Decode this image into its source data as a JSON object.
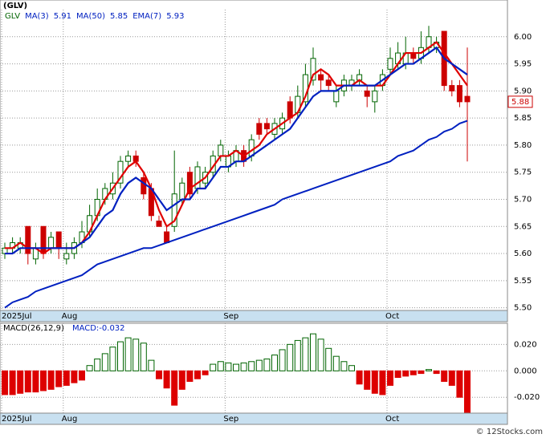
{
  "title": "(GLV)",
  "watermark": "© 12Stocks.com",
  "chart_data": [
    {
      "type": "candlestick",
      "ticker": "GLV",
      "legend": [
        {
          "name": "MA(3)",
          "value": 5.91
        },
        {
          "name": "MA(50)",
          "value": 5.85
        },
        {
          "name": "EMA(7)",
          "value": 5.93
        }
      ],
      "last_price": 5.88,
      "categories": [
        "2025Jul",
        null,
        null,
        null,
        null,
        null,
        null,
        null,
        "Aug",
        null,
        null,
        null,
        null,
        null,
        null,
        null,
        null,
        null,
        null,
        null,
        null,
        null,
        null,
        null,
        null,
        null,
        null,
        null,
        null,
        "Sep",
        null,
        null,
        null,
        null,
        null,
        null,
        null,
        null,
        null,
        null,
        null,
        null,
        null,
        null,
        null,
        null,
        null,
        null,
        null,
        null,
        "Oct",
        null,
        null,
        null,
        null,
        null,
        null,
        null,
        null,
        null,
        null
      ],
      "open": [
        5.6,
        5.61,
        5.61,
        5.65,
        5.59,
        5.65,
        5.61,
        5.64,
        5.59,
        5.6,
        5.62,
        5.64,
        5.67,
        5.7,
        5.71,
        5.73,
        5.77,
        5.78,
        5.74,
        5.72,
        5.66,
        5.64,
        5.65,
        5.7,
        5.75,
        5.72,
        5.73,
        5.75,
        5.78,
        5.76,
        5.77,
        5.79,
        5.78,
        5.84,
        5.84,
        5.82,
        5.83,
        5.88,
        5.86,
        5.88,
        5.92,
        5.93,
        5.92,
        5.88,
        5.9,
        5.91,
        5.92,
        5.9,
        5.88,
        5.91,
        5.94,
        5.95,
        5.95,
        5.97,
        5.96,
        5.98,
        5.98,
        6.01,
        5.91,
        5.91,
        5.89
      ],
      "high": [
        5.62,
        5.63,
        5.63,
        5.65,
        5.62,
        5.65,
        5.64,
        5.64,
        5.62,
        5.63,
        5.66,
        5.69,
        5.72,
        5.73,
        5.75,
        5.78,
        5.79,
        5.79,
        5.75,
        5.73,
        5.67,
        5.65,
        5.79,
        5.74,
        5.76,
        5.77,
        5.76,
        5.79,
        5.81,
        5.79,
        5.8,
        5.8,
        5.82,
        5.85,
        5.85,
        5.85,
        5.86,
        5.89,
        5.91,
        5.95,
        5.98,
        5.94,
        5.93,
        5.91,
        5.93,
        5.93,
        5.94,
        5.91,
        5.91,
        5.94,
        5.98,
        5.99,
        6.0,
        5.98,
        6.01,
        6.02,
        6.0,
        6.01,
        5.92,
        5.92,
        5.98
      ],
      "low": [
        5.59,
        5.6,
        5.6,
        5.58,
        5.58,
        5.59,
        5.6,
        5.59,
        5.58,
        5.59,
        5.61,
        5.63,
        5.66,
        5.69,
        5.7,
        5.72,
        5.76,
        5.76,
        5.7,
        5.66,
        5.65,
        5.62,
        5.64,
        5.69,
        5.7,
        5.71,
        5.72,
        5.74,
        5.77,
        5.75,
        5.76,
        5.76,
        5.77,
        5.81,
        5.82,
        5.81,
        5.82,
        5.84,
        5.85,
        5.87,
        5.91,
        5.9,
        5.9,
        5.87,
        5.89,
        5.9,
        5.91,
        5.87,
        5.86,
        5.9,
        5.93,
        5.94,
        5.94,
        5.95,
        5.95,
        5.97,
        5.97,
        5.9,
        5.89,
        5.87,
        5.77
      ],
      "close": [
        5.61,
        5.62,
        5.62,
        5.6,
        5.61,
        5.6,
        5.63,
        5.61,
        5.6,
        5.62,
        5.64,
        5.67,
        5.7,
        5.72,
        5.73,
        5.77,
        5.78,
        5.77,
        5.71,
        5.67,
        5.65,
        5.62,
        5.71,
        5.73,
        5.71,
        5.76,
        5.75,
        5.78,
        5.8,
        5.78,
        5.79,
        5.77,
        5.81,
        5.82,
        5.83,
        5.84,
        5.85,
        5.85,
        5.89,
        5.93,
        5.96,
        5.92,
        5.91,
        5.9,
        5.92,
        5.92,
        5.93,
        5.89,
        5.9,
        5.93,
        5.96,
        5.97,
        5.97,
        5.96,
        5.98,
        6.0,
        5.99,
        5.91,
        5.9,
        5.88,
        5.88
      ],
      "up_color": "#006400",
      "down_color": "#cc0000",
      "series": [
        {
          "name": "MA(3)",
          "color": "#e00000",
          "values": [
            5.61,
            5.61,
            5.62,
            5.61,
            5.61,
            5.6,
            5.61,
            5.61,
            5.61,
            5.61,
            5.62,
            5.64,
            5.67,
            5.7,
            5.72,
            5.74,
            5.76,
            5.77,
            5.75,
            5.72,
            5.68,
            5.65,
            5.66,
            5.69,
            5.72,
            5.73,
            5.74,
            5.76,
            5.78,
            5.78,
            5.79,
            5.78,
            5.79,
            5.8,
            5.82,
            5.83,
            5.84,
            5.85,
            5.86,
            5.89,
            5.93,
            5.94,
            5.93,
            5.91,
            5.91,
            5.91,
            5.92,
            5.91,
            5.91,
            5.91,
            5.93,
            5.95,
            5.97,
            5.97,
            5.97,
            5.98,
            5.99,
            5.97,
            5.95,
            5.93,
            5.91
          ]
        },
        {
          "name": "MA(50)",
          "color": "#0020c0",
          "values": [
            5.5,
            5.51,
            5.515,
            5.52,
            5.53,
            5.535,
            5.54,
            5.545,
            5.55,
            5.555,
            5.56,
            5.57,
            5.58,
            5.585,
            5.59,
            5.595,
            5.6,
            5.605,
            5.61,
            5.61,
            5.615,
            5.62,
            5.625,
            5.63,
            5.635,
            5.64,
            5.645,
            5.65,
            5.655,
            5.66,
            5.665,
            5.67,
            5.675,
            5.68,
            5.685,
            5.69,
            5.7,
            5.705,
            5.71,
            5.715,
            5.72,
            5.725,
            5.73,
            5.735,
            5.74,
            5.745,
            5.75,
            5.755,
            5.76,
            5.765,
            5.77,
            5.78,
            5.785,
            5.79,
            5.8,
            5.81,
            5.815,
            5.825,
            5.83,
            5.84,
            5.845
          ]
        },
        {
          "name": "EMA(7)",
          "color": "#0020c0",
          "values": [
            5.6,
            5.6,
            5.61,
            5.61,
            5.61,
            5.61,
            5.61,
            5.61,
            5.61,
            5.61,
            5.62,
            5.63,
            5.65,
            5.67,
            5.68,
            5.71,
            5.73,
            5.74,
            5.73,
            5.72,
            5.7,
            5.68,
            5.69,
            5.7,
            5.7,
            5.72,
            5.72,
            5.74,
            5.76,
            5.76,
            5.77,
            5.77,
            5.78,
            5.79,
            5.8,
            5.81,
            5.82,
            5.83,
            5.85,
            5.87,
            5.89,
            5.9,
            5.9,
            5.9,
            5.91,
            5.91,
            5.91,
            5.91,
            5.91,
            5.92,
            5.93,
            5.94,
            5.95,
            5.95,
            5.96,
            5.97,
            5.98,
            5.96,
            5.95,
            5.94,
            5.93
          ]
        }
      ],
      "ylim": [
        5.495,
        6.05
      ],
      "yticks": [
        {
          "value": 5.5,
          "label": "5.50"
        },
        5.55,
        {
          "value": 5.6,
          "label": "5.60"
        },
        5.65,
        {
          "value": 5.7,
          "label": "5.70"
        },
        5.75,
        {
          "value": 5.8,
          "label": "5.80"
        },
        5.85,
        {
          "value": 5.9,
          "label": "5.90"
        },
        5.95,
        {
          "value": 6.0,
          "label": "6.00"
        }
      ],
      "grid": true
    },
    {
      "type": "bar",
      "title": "MACD(26,12,9)",
      "subtitle": "MACD:-0.032",
      "categories": [
        "2025Jul",
        null,
        null,
        null,
        null,
        null,
        null,
        null,
        "Aug",
        null,
        null,
        null,
        null,
        null,
        null,
        null,
        null,
        null,
        null,
        null,
        null,
        null,
        null,
        null,
        null,
        null,
        null,
        null,
        null,
        "Sep",
        null,
        null,
        null,
        null,
        null,
        null,
        null,
        null,
        null,
        null,
        null,
        null,
        null,
        null,
        null,
        null,
        null,
        null,
        null,
        null,
        "Oct",
        null,
        null,
        null,
        null,
        null,
        null,
        null,
        null,
        null,
        null
      ],
      "values": [
        -0.018,
        -0.018,
        -0.017,
        -0.016,
        -0.016,
        -0.015,
        -0.014,
        -0.012,
        -0.011,
        -0.009,
        -0.007,
        0.004,
        0.009,
        0.013,
        0.018,
        0.022,
        0.025,
        0.024,
        0.021,
        0.008,
        -0.006,
        -0.013,
        -0.026,
        -0.014,
        -0.008,
        -0.006,
        -0.003,
        0.005,
        0.007,
        0.006,
        0.005,
        0.006,
        0.007,
        0.008,
        0.009,
        0.012,
        0.016,
        0.02,
        0.023,
        0.025,
        0.028,
        0.024,
        0.017,
        0.011,
        0.007,
        0.004,
        -0.01,
        -0.014,
        -0.017,
        -0.018,
        -0.011,
        -0.005,
        -0.004,
        -0.003,
        -0.002,
        0.001,
        -0.002,
        -0.008,
        -0.011,
        -0.02,
        -0.032
      ],
      "up_color": "#006400",
      "down_color": "#dd0000",
      "ylim": [
        -0.032,
        0.036
      ],
      "yticks": [
        {
          "value": 0.02,
          "label": "0.020"
        },
        {
          "value": 0,
          "label": "0.000"
        },
        {
          "value": -0.02,
          "label": "-0.020"
        }
      ],
      "grid": true
    }
  ]
}
